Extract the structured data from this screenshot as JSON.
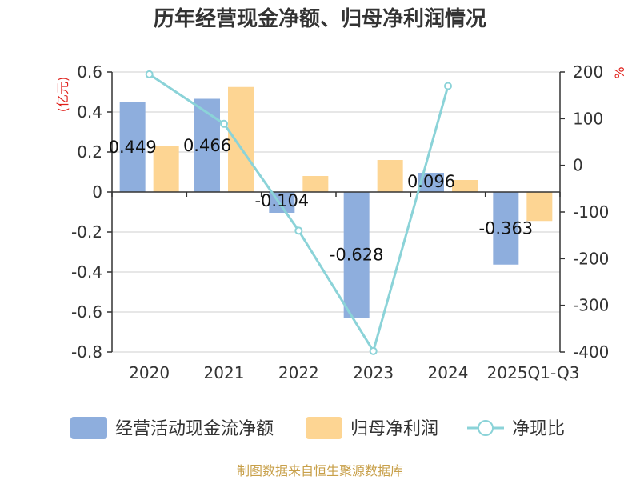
{
  "chart_data": {
    "type": "bar+line",
    "title": "历年经营现金净额、归母净利润情况",
    "categories": [
      "2020",
      "2021",
      "2022",
      "2023",
      "2024",
      "2025Q1-Q3"
    ],
    "series": [
      {
        "name": "经营活动现金流净额",
        "type": "bar",
        "axis": "left",
        "color": "#8eaedd",
        "values": [
          0.449,
          0.466,
          -0.104,
          -0.628,
          0.096,
          -0.363
        ],
        "data_labels": [
          "0.449",
          "0.466",
          "-0.104",
          "-0.628",
          "0.096",
          "-0.363"
        ]
      },
      {
        "name": "归母净利润",
        "type": "bar",
        "axis": "left",
        "color": "#fdd593",
        "values": [
          0.23,
          0.525,
          0.08,
          0.16,
          0.06,
          -0.145
        ]
      },
      {
        "name": "净现比",
        "type": "line",
        "axis": "right",
        "color": "#8bd3d8",
        "values": [
          195,
          89,
          -140,
          -398,
          170,
          null
        ]
      }
    ],
    "left_axis": {
      "unit": "(亿元)",
      "ylim": [
        -0.8,
        0.6
      ],
      "ticks": [
        0.6,
        0.4,
        0.2,
        0,
        -0.2,
        -0.4,
        -0.6,
        -0.8
      ],
      "tick_labels": [
        "0.6",
        "0.4",
        "0.2",
        "0",
        "-0.2",
        "-0.4",
        "-0.6",
        "-0.8"
      ]
    },
    "right_axis": {
      "unit": "%",
      "ylim": [
        -400,
        200
      ],
      "ticks": [
        200,
        100,
        0,
        -100,
        -200,
        -300,
        -400
      ],
      "tick_labels": [
        "200",
        "100",
        "0",
        "-100",
        "-200",
        "-300",
        "-400"
      ]
    },
    "legend": {
      "position": "bottom",
      "items": [
        "经营活动现金流净额",
        "归母净利润",
        "净现比"
      ]
    },
    "grid": true
  },
  "source": "制图数据来自恒生聚源数据库"
}
